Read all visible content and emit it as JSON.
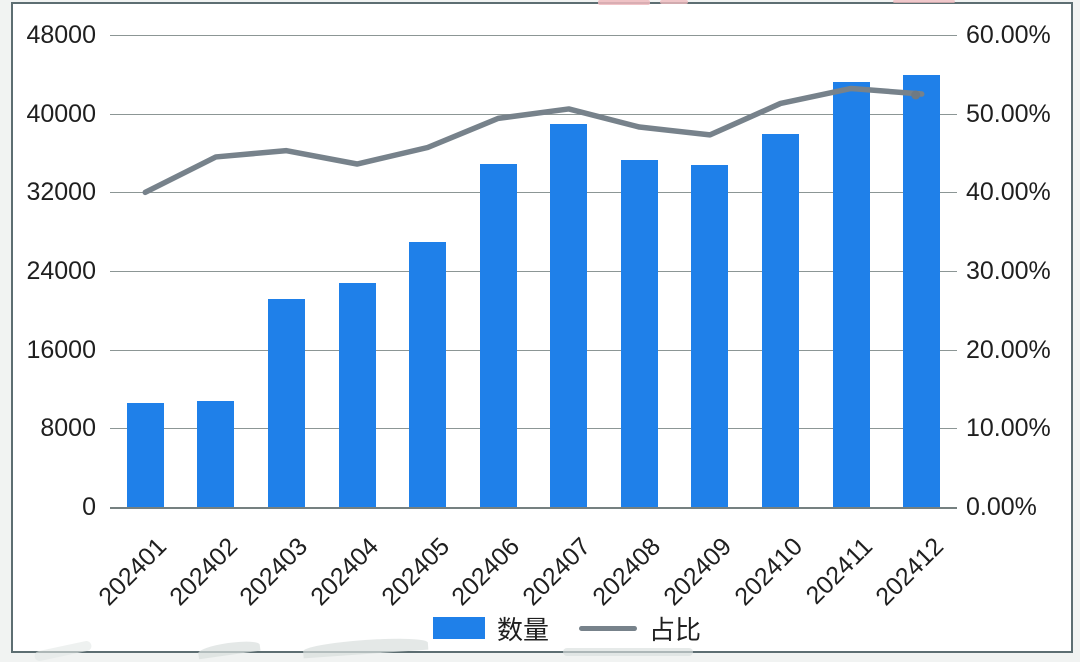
{
  "chart_data": {
    "type": "combo",
    "title": "",
    "categories": [
      "202401",
      "202402",
      "202403",
      "202404",
      "202405",
      "202406",
      "202407",
      "202408",
      "202409",
      "202410",
      "202411",
      "202412"
    ],
    "series": [
      {
        "name": "数量",
        "type": "bar",
        "axis": "left",
        "color": "#1f80e9",
        "values": [
          10600,
          10800,
          21200,
          22800,
          27000,
          34900,
          38900,
          35300,
          34800,
          37900,
          43200,
          43900
        ]
      },
      {
        "name": "占比",
        "type": "line",
        "axis": "right",
        "color": "#77828b",
        "unit": "%",
        "values": [
          40.0,
          44.5,
          45.3,
          43.6,
          45.7,
          49.4,
          50.6,
          48.3,
          47.3,
          51.3,
          53.2,
          52.5
        ]
      }
    ],
    "left_axis": {
      "min": 0,
      "max": 48000,
      "step": 8000,
      "tick_labels": [
        "0",
        "8000",
        "16000",
        "24000",
        "32000",
        "40000",
        "48000"
      ]
    },
    "right_axis": {
      "min": 0,
      "max": 60,
      "step": 10,
      "tick_labels": [
        "0.00%",
        "10.00%",
        "20.00%",
        "30.00%",
        "40.00%",
        "50.00%",
        "60.00%"
      ]
    },
    "legend": {
      "position": "bottom",
      "entries": [
        "数量",
        "占比"
      ]
    },
    "grid": true,
    "x_tick_rotation": -45
  },
  "colors": {
    "bar": "#1f80e9",
    "line": "#77828b",
    "line_end_dot": "#6f7a83",
    "grid": "#8c9695",
    "axis": "#758080",
    "text": "#1f1f1f",
    "frame_border": "#5d6e72",
    "page_bg": "#f1f3f2",
    "watermark_pink": "#efb9bd",
    "watermark_gray": "#d9dedd"
  }
}
